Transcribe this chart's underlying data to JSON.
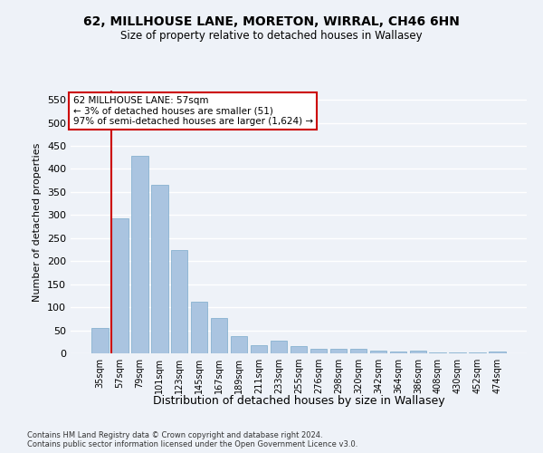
{
  "title1": "62, MILLHOUSE LANE, MORETON, WIRRAL, CH46 6HN",
  "title2": "Size of property relative to detached houses in Wallasey",
  "xlabel": "Distribution of detached houses by size in Wallasey",
  "ylabel": "Number of detached properties",
  "footer1": "Contains HM Land Registry data © Crown copyright and database right 2024.",
  "footer2": "Contains public sector information licensed under the Open Government Licence v3.0.",
  "annotation_line1": "62 MILLHOUSE LANE: 57sqm",
  "annotation_line2": "← 3% of detached houses are smaller (51)",
  "annotation_line3": "97% of semi-detached houses are larger (1,624) →",
  "bar_color": "#aac4e0",
  "bar_edge_color": "#7aaaca",
  "red_line_x": 1,
  "categories": [
    "35sqm",
    "57sqm",
    "79sqm",
    "101sqm",
    "123sqm",
    "145sqm",
    "167sqm",
    "189sqm",
    "211sqm",
    "233sqm",
    "255sqm",
    "276sqm",
    "298sqm",
    "320sqm",
    "342sqm",
    "364sqm",
    "386sqm",
    "408sqm",
    "430sqm",
    "452sqm",
    "474sqm"
  ],
  "values": [
    55,
    293,
    428,
    365,
    225,
    113,
    76,
    38,
    18,
    27,
    15,
    10,
    10,
    10,
    5,
    4,
    6,
    1,
    1,
    1,
    4
  ],
  "ylim": [
    0,
    570
  ],
  "yticks": [
    0,
    50,
    100,
    150,
    200,
    250,
    300,
    350,
    400,
    450,
    500,
    550
  ],
  "background_color": "#eef2f8",
  "grid_color": "#ffffff",
  "red_line_color": "#cc0000",
  "annotation_box_color": "#ffffff",
  "annotation_box_edge": "#cc0000"
}
